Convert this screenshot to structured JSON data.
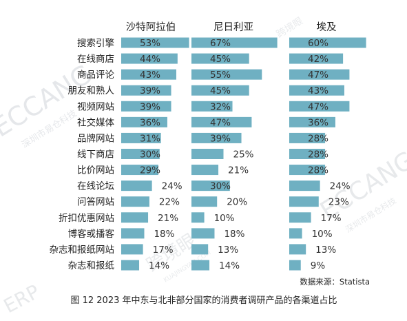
{
  "chart_data": {
    "type": "bar",
    "orientation": "horizontal",
    "layout": "small-multiples",
    "categories": [
      "搜索引擎",
      "在线商店",
      "商品评论",
      "朋友和熟人",
      "视频网站",
      "社交媒体",
      "品牌网站",
      "线下商店",
      "比价网站",
      "在线论坛",
      "问答网站",
      "折扣优惠网站",
      "博客或播客",
      "杂志和报纸网站",
      "杂志和报纸"
    ],
    "series": [
      {
        "name": "沙特阿拉伯",
        "values": [
          53,
          44,
          43,
          39,
          39,
          36,
          31,
          30,
          29,
          24,
          22,
          21,
          18,
          17,
          14
        ]
      },
      {
        "name": "尼日利亚",
        "values": [
          67,
          45,
          55,
          45,
          32,
          47,
          39,
          25,
          21,
          30,
          20,
          10,
          18,
          13,
          14
        ]
      },
      {
        "name": "埃及",
        "values": [
          60,
          42,
          47,
          43,
          47,
          36,
          28,
          28,
          28,
          24,
          23,
          17,
          10,
          13,
          9
        ]
      }
    ],
    "value_format": "{v}%",
    "source": "数据来源：Statista",
    "caption": "图 12  2023 年中东与北非部分国家的消费者调研产品的各渠道占比",
    "bar_color": "#6fb0c2"
  },
  "watermarks": {
    "brand_latin": "ECCANG",
    "brand_cn": "深圳市易仓科技",
    "kjy_cn": "跨境眼",
    "kjy_latin": "KUAJINGYAN.COM",
    "erp": "ERP"
  }
}
